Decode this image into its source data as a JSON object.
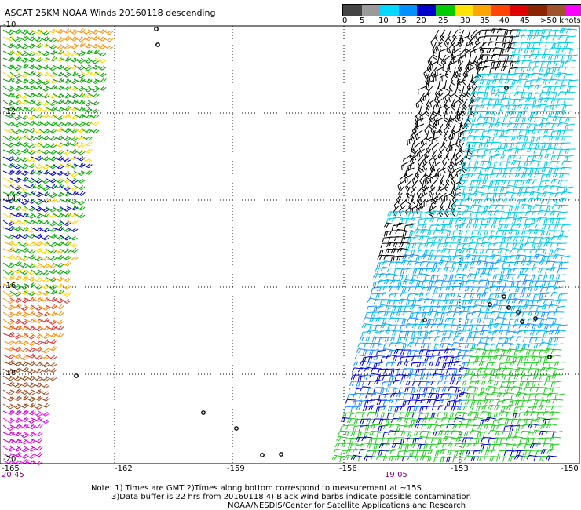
{
  "title": "ASCAT 25KM NOAA Winds 20160118 descending",
  "colorbar": {
    "colors": [
      "#444444",
      "#9a9a9a",
      "#00d8ff",
      "#0090ff",
      "#0000cc",
      "#00cc00",
      "#ffe400",
      "#ffa500",
      "#ff4500",
      "#e00000",
      "#8b2500",
      "#a0522d",
      "#ff00ff",
      "#4b0082"
    ],
    "labels": [
      "0",
      "5",
      "10",
      "15",
      "20",
      "25",
      "30",
      "35",
      "40",
      "45",
      ">50 knots"
    ]
  },
  "lon_labels": [
    "-165",
    "-162",
    "-159",
    "-156",
    "-153",
    "-150"
  ],
  "lat_labels": [
    "-10",
    "-12",
    "-14",
    "-16",
    "-18",
    "-20"
  ],
  "pass_times": [
    "20:45",
    "19:05"
  ],
  "notes": [
    "Note: 1) Times are GMT 2)Times along bottom correspond to measurement at ~15S",
    "3)Data buffer is 22 hrs from 20160118 4) Black wind barbs indicate possible contamination",
    "NOAA/NESDIS/Center for Satellite Applications and Research"
  ]
}
